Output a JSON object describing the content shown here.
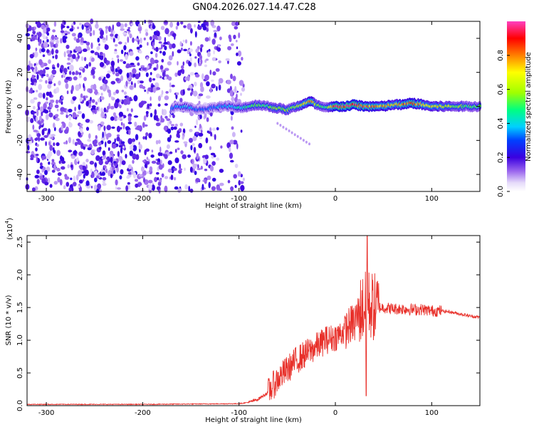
{
  "title": "GN04.2026.027.14.47.C28",
  "chart_data": [
    {
      "type": "heatmap",
      "xlabel": "Height of straight line (km)",
      "ylabel": "Frequency (Hz)",
      "xlim": [
        -320,
        150
      ],
      "ylim": [
        -50,
        50
      ],
      "xticks": [
        -300,
        -200,
        -100,
        0,
        100
      ],
      "yticks": [
        -40,
        -20,
        0,
        20,
        40
      ],
      "colorbar": {
        "label": "Normalized spectral amplitude",
        "range": [
          0,
          1
        ],
        "ticks": [
          "0.0",
          "0.2",
          "0.4",
          "0.6",
          "0.8"
        ]
      },
      "ridge": {
        "x": [
          -170,
          -160,
          -150,
          -140,
          -130,
          -120,
          -110,
          -100,
          -90,
          -80,
          -70,
          -60,
          -50,
          -40,
          -30,
          -25,
          -20,
          -10,
          0,
          10,
          20,
          30,
          40,
          50,
          60,
          70,
          80,
          90,
          100,
          110,
          120,
          130,
          140,
          150
        ],
        "freq": [
          -1,
          0,
          -1,
          -2,
          -1,
          0,
          0,
          -1,
          0,
          1,
          0,
          -1,
          -2,
          0,
          2,
          3,
          1,
          -1,
          0,
          0,
          1,
          0,
          0,
          0,
          1,
          1,
          2,
          1,
          0,
          0,
          0,
          0,
          0,
          0
        ],
        "amplitude": [
          0.3,
          0.35,
          0.35,
          0.3,
          0.3,
          0.35,
          0.35,
          0.4,
          0.45,
          0.5,
          0.5,
          0.6,
          0.55,
          0.6,
          0.7,
          0.8,
          0.6,
          0.5,
          0.9,
          0.95,
          0.9,
          0.85,
          0.8,
          0.75,
          0.7,
          0.8,
          0.85,
          0.8,
          0.7,
          0.65,
          0.6,
          0.55,
          0.5,
          0.5
        ]
      }
    },
    {
      "type": "line",
      "xlabel": "Height of straight line (km)",
      "ylabel": "SNR (10 * v/v)",
      "scale_label": "(x10",
      "scale_exponent": "4",
      "scale_suffix": ")",
      "xlim": [
        -320,
        150
      ],
      "ylim": [
        0,
        2.6
      ],
      "xticks": [
        -300,
        -200,
        -100,
        0,
        100
      ],
      "yticks": [
        "0.0",
        "0.5",
        "1.0",
        "1.5",
        "2.0",
        "2.5"
      ],
      "color": "#e8302a",
      "envelope": {
        "x": [
          -320,
          -200,
          -100,
          -90,
          -80,
          -70,
          -60,
          -50,
          -40,
          -30,
          -20,
          -10,
          0,
          10,
          20,
          25,
          30,
          35,
          40,
          50,
          60,
          70,
          80,
          90,
          100,
          110,
          120,
          130,
          140,
          150
        ],
        "y": [
          0.02,
          0.02,
          0.03,
          0.05,
          0.1,
          0.2,
          0.4,
          0.55,
          0.7,
          0.8,
          0.9,
          1.0,
          1.05,
          1.15,
          1.3,
          1.45,
          1.5,
          1.55,
          1.5,
          1.5,
          1.48,
          1.48,
          1.47,
          1.47,
          1.45,
          1.45,
          1.43,
          1.4,
          1.37,
          1.35
        ]
      },
      "peaks": [
        {
          "x": 33,
          "y": 2.6
        },
        {
          "x": 32,
          "y": 0.15
        },
        {
          "x": 20,
          "y": 1.0
        },
        {
          "x": -10,
          "y": 1.2
        }
      ]
    }
  ]
}
